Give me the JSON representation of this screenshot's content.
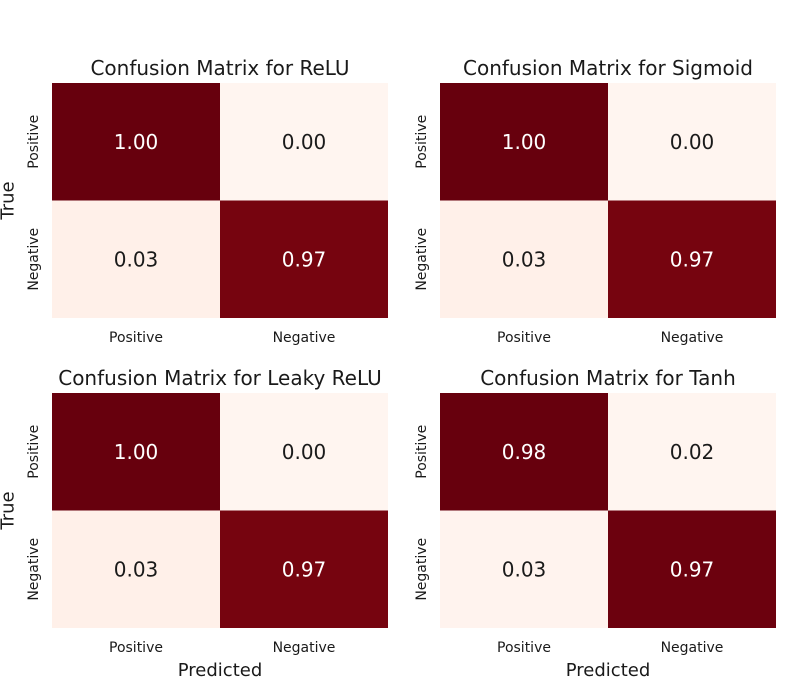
{
  "chart_data": [
    {
      "type": "heatmap",
      "title": "Confusion Matrix for ReLU",
      "x_categories": [
        "Positive",
        "Negative"
      ],
      "y_categories": [
        "Positive",
        "Negative"
      ],
      "xlabel": "",
      "ylabel": "True",
      "values": [
        [
          1.0,
          0.0
        ],
        [
          0.03,
          0.97
        ]
      ],
      "value_format": "0.00"
    },
    {
      "type": "heatmap",
      "title": "Confusion Matrix for Sigmoid",
      "x_categories": [
        "Positive",
        "Negative"
      ],
      "y_categories": [
        "Positive",
        "Negative"
      ],
      "xlabel": "",
      "ylabel": "",
      "values": [
        [
          1.0,
          0.0
        ],
        [
          0.03,
          0.97
        ]
      ],
      "value_format": "0.00"
    },
    {
      "type": "heatmap",
      "title": "Confusion Matrix for Leaky ReLU",
      "x_categories": [
        "Positive",
        "Negative"
      ],
      "y_categories": [
        "Positive",
        "Negative"
      ],
      "xlabel": "Predicted",
      "ylabel": "True",
      "values": [
        [
          1.0,
          0.0
        ],
        [
          0.03,
          0.97
        ]
      ],
      "value_format": "0.00"
    },
    {
      "type": "heatmap",
      "title": "Confusion Matrix for Tanh",
      "x_categories": [
        "Positive",
        "Negative"
      ],
      "y_categories": [
        "Positive",
        "Negative"
      ],
      "xlabel": "Predicted",
      "ylabel": "",
      "values": [
        [
          0.98,
          0.02
        ],
        [
          0.03,
          0.97
        ]
      ],
      "value_format": "0.00"
    }
  ],
  "colormap": {
    "name": "Reds",
    "low_color": "#fff5f0",
    "high_color": "#67000d",
    "light_text_color": "#ffffff",
    "dark_text_color": "#1a1a1a"
  },
  "grid": false,
  "colorbar": false
}
